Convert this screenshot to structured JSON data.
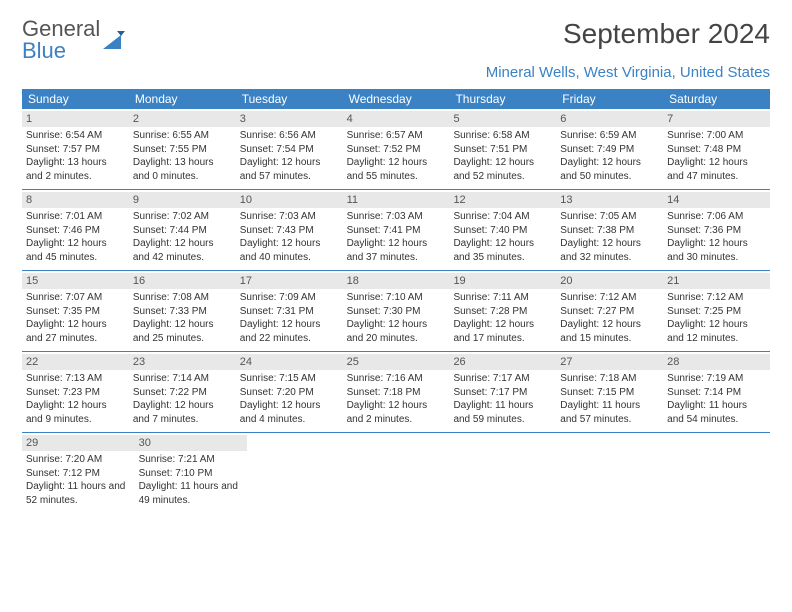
{
  "logo": {
    "text_a": "General",
    "text_b": "Blue"
  },
  "title": "September 2024",
  "subtitle": "Mineral Wells, West Virginia, United States",
  "colors": {
    "header_bg": "#3b82c4",
    "daynum_bg": "#e8e8e8",
    "logo_blue": "#3b82c4"
  },
  "weekdays": [
    "Sunday",
    "Monday",
    "Tuesday",
    "Wednesday",
    "Thursday",
    "Friday",
    "Saturday"
  ],
  "days": [
    {
      "n": "1",
      "sr": "Sunrise: 6:54 AM",
      "ss": "Sunset: 7:57 PM",
      "dl": "Daylight: 13 hours and 2 minutes."
    },
    {
      "n": "2",
      "sr": "Sunrise: 6:55 AM",
      "ss": "Sunset: 7:55 PM",
      "dl": "Daylight: 13 hours and 0 minutes."
    },
    {
      "n": "3",
      "sr": "Sunrise: 6:56 AM",
      "ss": "Sunset: 7:54 PM",
      "dl": "Daylight: 12 hours and 57 minutes."
    },
    {
      "n": "4",
      "sr": "Sunrise: 6:57 AM",
      "ss": "Sunset: 7:52 PM",
      "dl": "Daylight: 12 hours and 55 minutes."
    },
    {
      "n": "5",
      "sr": "Sunrise: 6:58 AM",
      "ss": "Sunset: 7:51 PM",
      "dl": "Daylight: 12 hours and 52 minutes."
    },
    {
      "n": "6",
      "sr": "Sunrise: 6:59 AM",
      "ss": "Sunset: 7:49 PM",
      "dl": "Daylight: 12 hours and 50 minutes."
    },
    {
      "n": "7",
      "sr": "Sunrise: 7:00 AM",
      "ss": "Sunset: 7:48 PM",
      "dl": "Daylight: 12 hours and 47 minutes."
    },
    {
      "n": "8",
      "sr": "Sunrise: 7:01 AM",
      "ss": "Sunset: 7:46 PM",
      "dl": "Daylight: 12 hours and 45 minutes."
    },
    {
      "n": "9",
      "sr": "Sunrise: 7:02 AM",
      "ss": "Sunset: 7:44 PM",
      "dl": "Daylight: 12 hours and 42 minutes."
    },
    {
      "n": "10",
      "sr": "Sunrise: 7:03 AM",
      "ss": "Sunset: 7:43 PM",
      "dl": "Daylight: 12 hours and 40 minutes."
    },
    {
      "n": "11",
      "sr": "Sunrise: 7:03 AM",
      "ss": "Sunset: 7:41 PM",
      "dl": "Daylight: 12 hours and 37 minutes."
    },
    {
      "n": "12",
      "sr": "Sunrise: 7:04 AM",
      "ss": "Sunset: 7:40 PM",
      "dl": "Daylight: 12 hours and 35 minutes."
    },
    {
      "n": "13",
      "sr": "Sunrise: 7:05 AM",
      "ss": "Sunset: 7:38 PM",
      "dl": "Daylight: 12 hours and 32 minutes."
    },
    {
      "n": "14",
      "sr": "Sunrise: 7:06 AM",
      "ss": "Sunset: 7:36 PM",
      "dl": "Daylight: 12 hours and 30 minutes."
    },
    {
      "n": "15",
      "sr": "Sunrise: 7:07 AM",
      "ss": "Sunset: 7:35 PM",
      "dl": "Daylight: 12 hours and 27 minutes."
    },
    {
      "n": "16",
      "sr": "Sunrise: 7:08 AM",
      "ss": "Sunset: 7:33 PM",
      "dl": "Daylight: 12 hours and 25 minutes."
    },
    {
      "n": "17",
      "sr": "Sunrise: 7:09 AM",
      "ss": "Sunset: 7:31 PM",
      "dl": "Daylight: 12 hours and 22 minutes."
    },
    {
      "n": "18",
      "sr": "Sunrise: 7:10 AM",
      "ss": "Sunset: 7:30 PM",
      "dl": "Daylight: 12 hours and 20 minutes."
    },
    {
      "n": "19",
      "sr": "Sunrise: 7:11 AM",
      "ss": "Sunset: 7:28 PM",
      "dl": "Daylight: 12 hours and 17 minutes."
    },
    {
      "n": "20",
      "sr": "Sunrise: 7:12 AM",
      "ss": "Sunset: 7:27 PM",
      "dl": "Daylight: 12 hours and 15 minutes."
    },
    {
      "n": "21",
      "sr": "Sunrise: 7:12 AM",
      "ss": "Sunset: 7:25 PM",
      "dl": "Daylight: 12 hours and 12 minutes."
    },
    {
      "n": "22",
      "sr": "Sunrise: 7:13 AM",
      "ss": "Sunset: 7:23 PM",
      "dl": "Daylight: 12 hours and 9 minutes."
    },
    {
      "n": "23",
      "sr": "Sunrise: 7:14 AM",
      "ss": "Sunset: 7:22 PM",
      "dl": "Daylight: 12 hours and 7 minutes."
    },
    {
      "n": "24",
      "sr": "Sunrise: 7:15 AM",
      "ss": "Sunset: 7:20 PM",
      "dl": "Daylight: 12 hours and 4 minutes."
    },
    {
      "n": "25",
      "sr": "Sunrise: 7:16 AM",
      "ss": "Sunset: 7:18 PM",
      "dl": "Daylight: 12 hours and 2 minutes."
    },
    {
      "n": "26",
      "sr": "Sunrise: 7:17 AM",
      "ss": "Sunset: 7:17 PM",
      "dl": "Daylight: 11 hours and 59 minutes."
    },
    {
      "n": "27",
      "sr": "Sunrise: 7:18 AM",
      "ss": "Sunset: 7:15 PM",
      "dl": "Daylight: 11 hours and 57 minutes."
    },
    {
      "n": "28",
      "sr": "Sunrise: 7:19 AM",
      "ss": "Sunset: 7:14 PM",
      "dl": "Daylight: 11 hours and 54 minutes."
    },
    {
      "n": "29",
      "sr": "Sunrise: 7:20 AM",
      "ss": "Sunset: 7:12 PM",
      "dl": "Daylight: 11 hours and 52 minutes."
    },
    {
      "n": "30",
      "sr": "Sunrise: 7:21 AM",
      "ss": "Sunset: 7:10 PM",
      "dl": "Daylight: 11 hours and 49 minutes."
    }
  ],
  "layout": {
    "start_offset": 0,
    "cols": 7
  }
}
